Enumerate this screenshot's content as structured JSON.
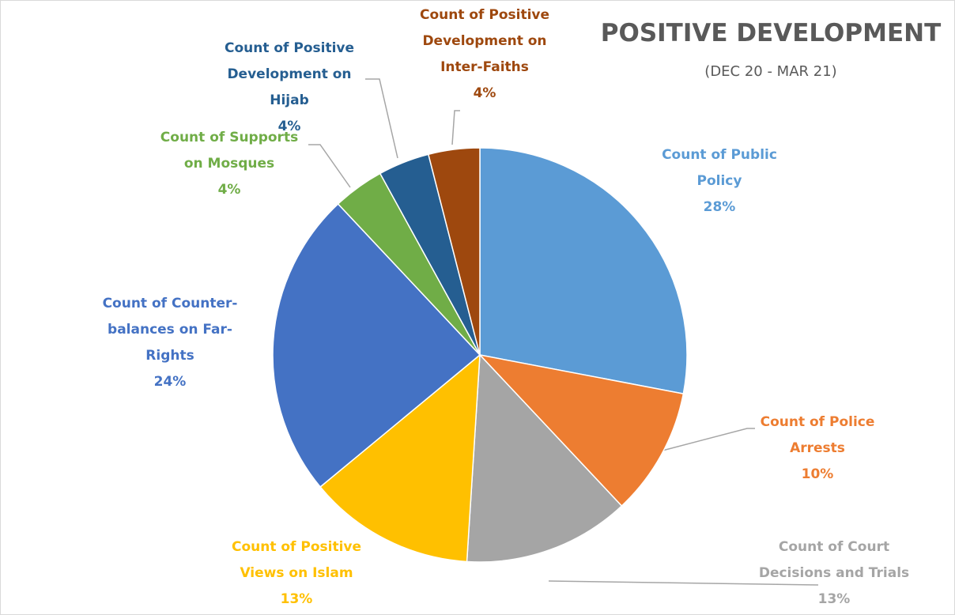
{
  "chart_data": {
    "type": "pie",
    "title": "POSITIVE DEVELOPMENT",
    "subtitle": "(DEC 20 - MAR 21)",
    "categories": [
      "Count of Public Policy",
      "Count of Police Arrests",
      "Count of Court Decisions and Trials",
      "Count of Positive Views on Islam",
      "Count of Counter-balances on Far-Rights",
      "Count of Supports on Mosques",
      "Count of Positive Development on Hijab",
      "Count of Positive Development on Inter-Faiths"
    ],
    "values": [
      28,
      10,
      13,
      13,
      24,
      4,
      4,
      4
    ],
    "value_labels": [
      "28%",
      "10%",
      "13%",
      "13%",
      "24%",
      "4%",
      "4%",
      "4%"
    ],
    "colors": [
      "#5b9bd5",
      "#ed7d31",
      "#a5a5a5",
      "#ffc000",
      "#4472c4",
      "#70ad47",
      "#255e91",
      "#9e480e"
    ]
  }
}
